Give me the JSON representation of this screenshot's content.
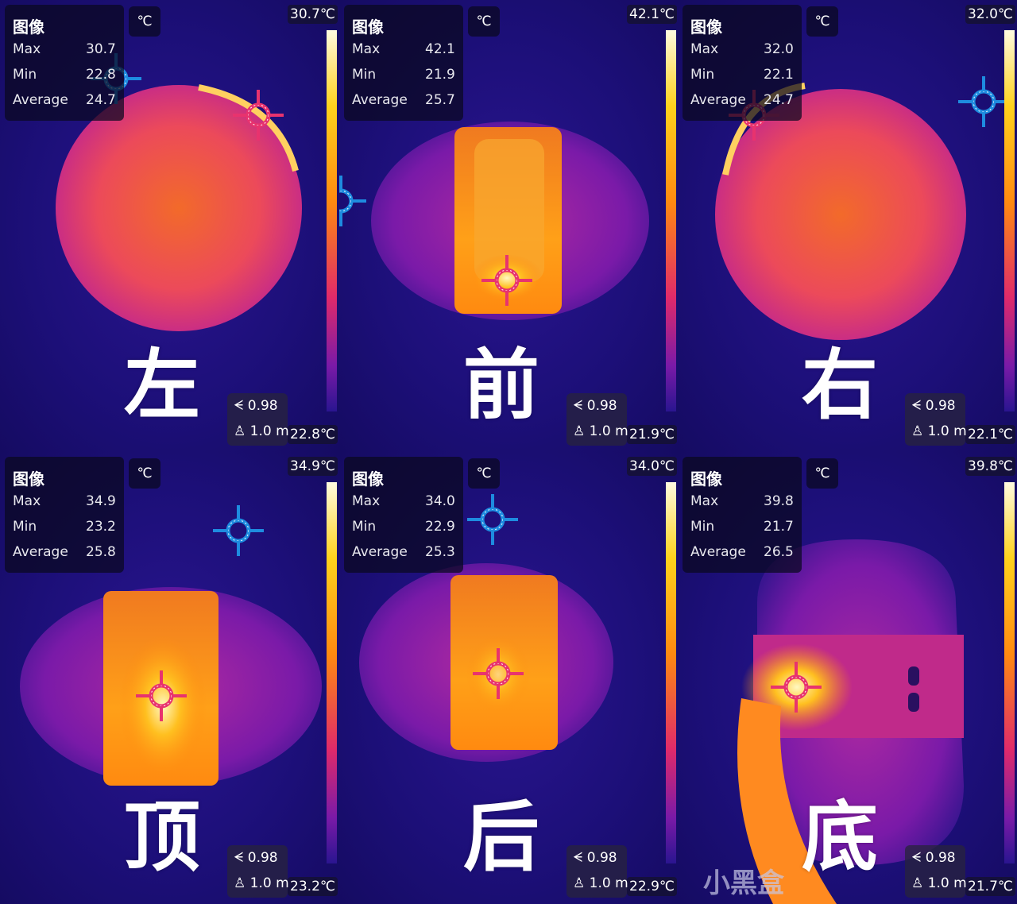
{
  "panels": [
    {
      "label": "左",
      "title": "图像",
      "unit": "℃",
      "max": "30.7",
      "min": "22.8",
      "average": "24.7",
      "scale_max": "30.7℃",
      "scale_min": "22.8℃",
      "emissivity": "0.98",
      "distance": "1.0 m"
    },
    {
      "label": "前",
      "title": "图像",
      "unit": "℃",
      "max": "42.1",
      "min": "21.9",
      "average": "25.7",
      "scale_max": "42.1℃",
      "scale_min": "21.9℃",
      "emissivity": "0.98",
      "distance": "1.0 m"
    },
    {
      "label": "右",
      "title": "图像",
      "unit": "℃",
      "max": "32.0",
      "min": "22.1",
      "average": "24.7",
      "scale_max": "32.0℃",
      "scale_min": "22.1℃",
      "emissivity": "0.98",
      "distance": "1.0 m"
    },
    {
      "label": "顶",
      "title": "图像",
      "unit": "℃",
      "max": "34.9",
      "min": "23.2",
      "average": "25.8",
      "scale_max": "34.9℃",
      "scale_min": "23.2℃",
      "emissivity": "0.98",
      "distance": "1.0 m"
    },
    {
      "label": "后",
      "title": "图像",
      "unit": "℃",
      "max": "34.0",
      "min": "22.9",
      "average": "25.3",
      "scale_max": "34.0℃",
      "scale_min": "22.9℃",
      "emissivity": "0.98",
      "distance": "1.0 m"
    },
    {
      "label": "底",
      "title": "图像",
      "unit": "℃",
      "max": "39.8",
      "min": "21.7",
      "average": "26.5",
      "scale_max": "39.8℃",
      "scale_min": "21.7℃",
      "emissivity": "0.98",
      "distance": "1.0 m"
    }
  ],
  "labels": {
    "max": "Max",
    "min": "Min",
    "average": "Average"
  },
  "icons": {
    "emissivity": "emissivity-icon",
    "distance": "distance-icon",
    "max_marker": "crosshair-hot-icon",
    "min_marker": "crosshair-cold-icon"
  },
  "colors": {
    "hot_marker": "#e8336e",
    "cold_marker": "#1e8ce0"
  },
  "watermark": "小黑盒"
}
